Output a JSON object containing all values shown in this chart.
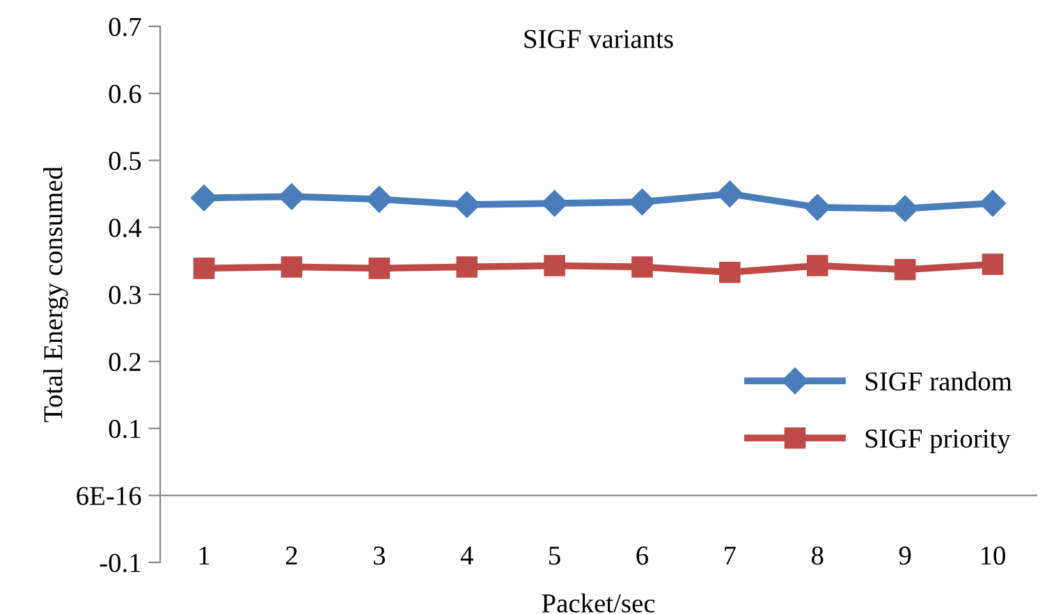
{
  "chart_data": {
    "type": "line",
    "title": "SIGF variants",
    "xlabel": "Packet/sec",
    "ylabel": "Total Energy consumed",
    "categories": [
      "1",
      "2",
      "3",
      "4",
      "5",
      "6",
      "7",
      "8",
      "9",
      "10"
    ],
    "series": [
      {
        "name": "SIGF random",
        "color": "#4a7ebb",
        "marker": "diamond",
        "values": [
          0.444,
          0.446,
          0.442,
          0.434,
          0.436,
          0.438,
          0.45,
          0.43,
          0.428,
          0.436
        ]
      },
      {
        "name": "SIGF priority",
        "color": "#be4b48",
        "marker": "square",
        "values": [
          0.339,
          0.341,
          0.339,
          0.341,
          0.343,
          0.341,
          0.333,
          0.343,
          0.337,
          0.345
        ]
      }
    ],
    "ylim": [
      -0.1,
      0.7
    ],
    "yticks": [
      -0.1,
      {
        "value": 0,
        "label": "6E-16"
      },
      0.1,
      0.2,
      0.3,
      0.4,
      0.5,
      0.6,
      0.7
    ],
    "grid": false,
    "legend": "right"
  }
}
